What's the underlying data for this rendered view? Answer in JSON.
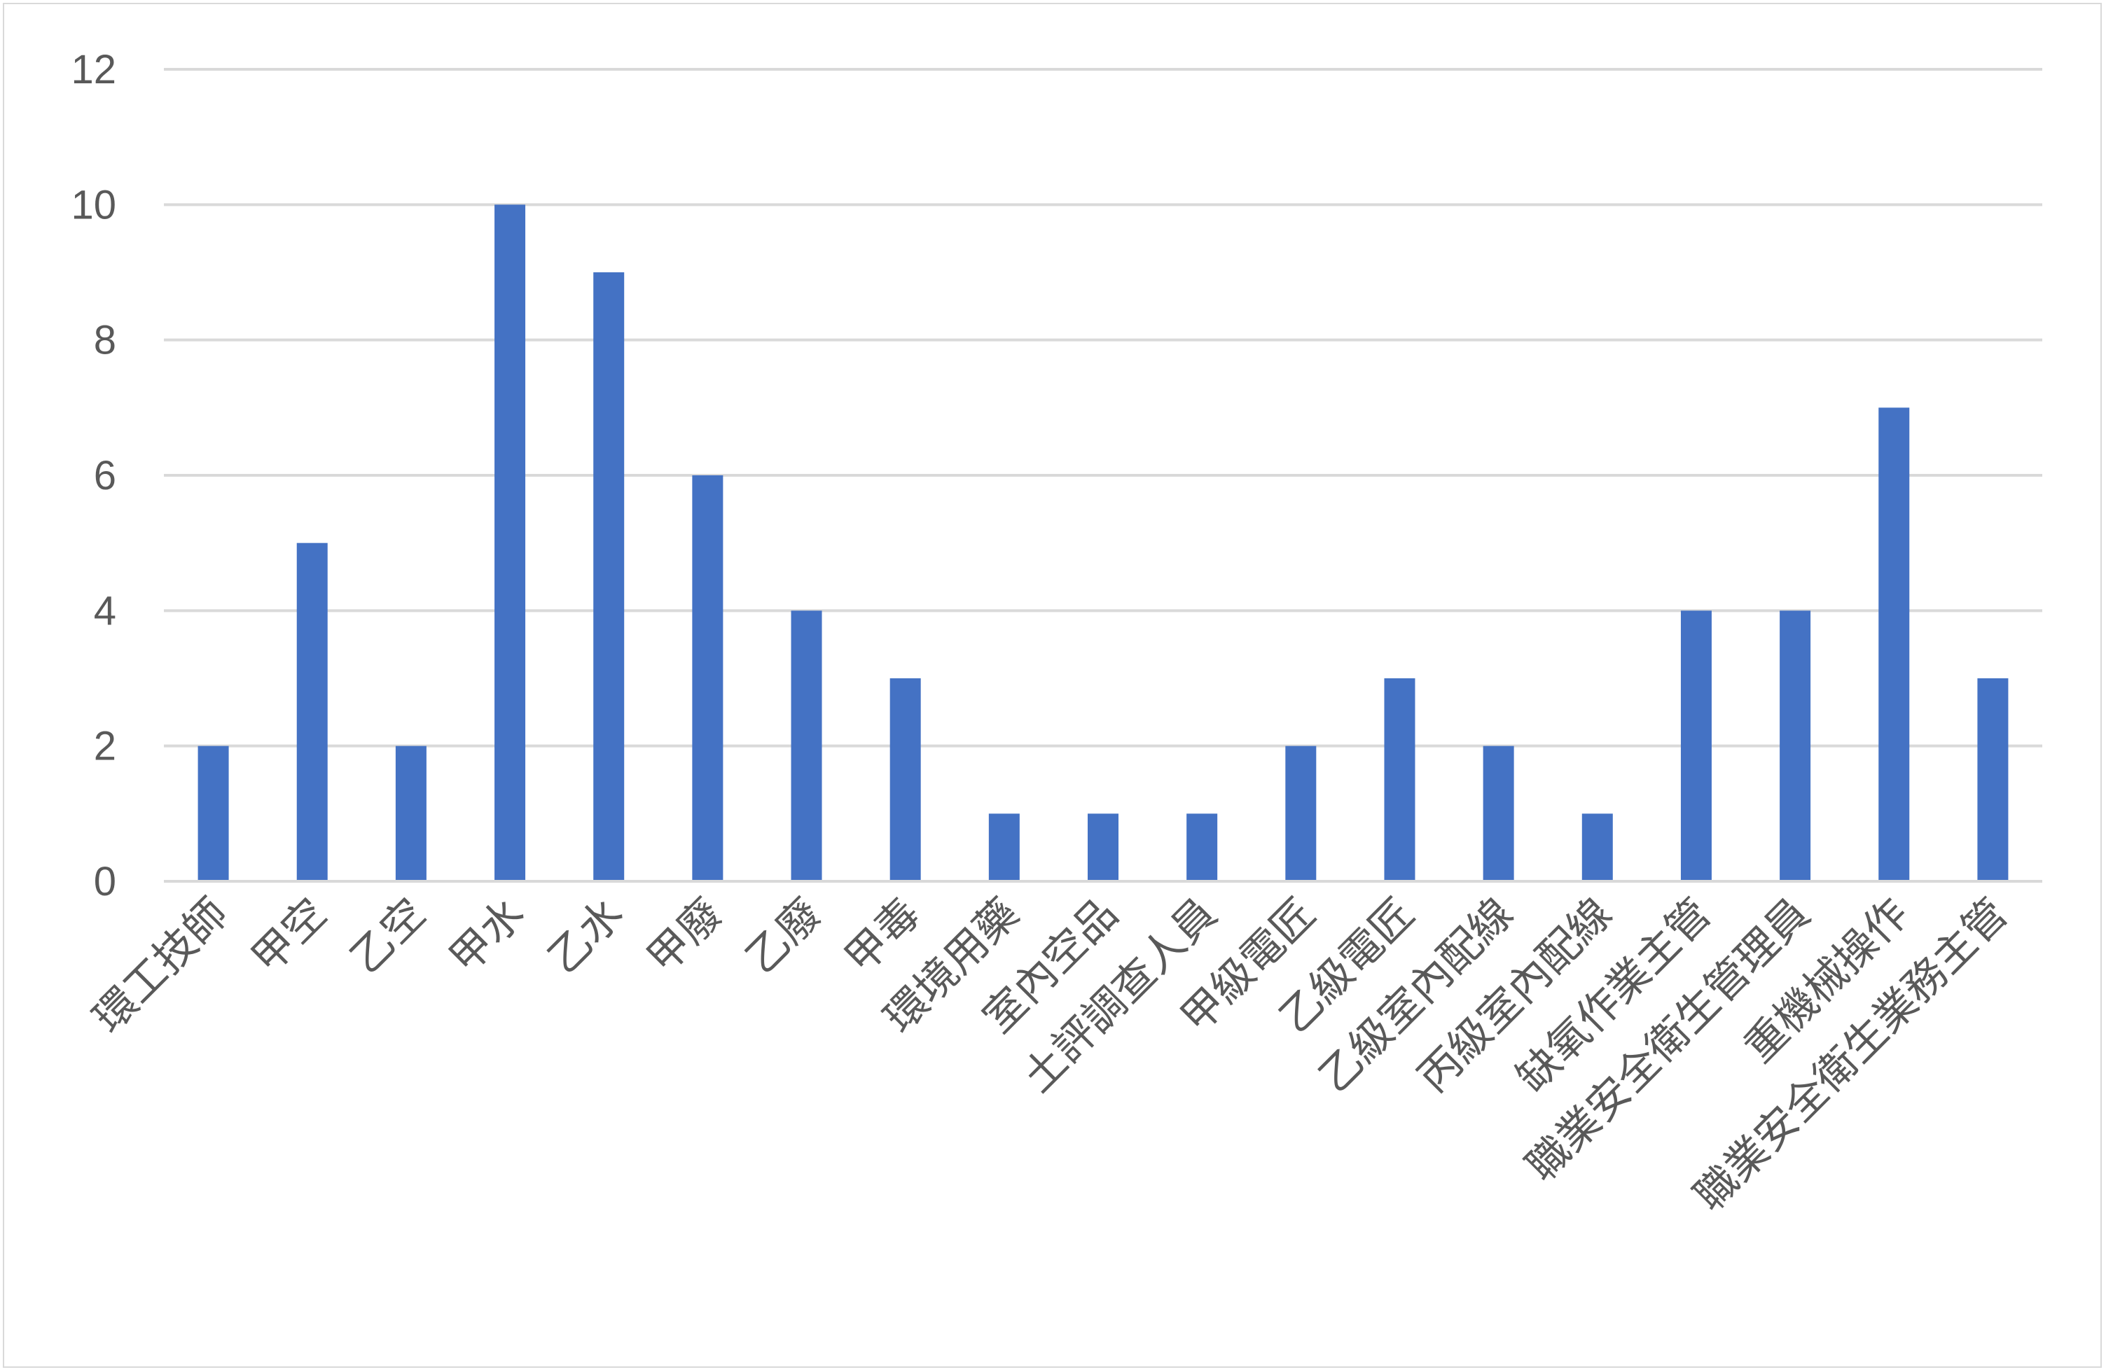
{
  "chart_data": {
    "type": "bar",
    "categories": [
      "環工技師",
      "甲空",
      "乙空",
      "甲水",
      "乙水",
      "甲廢",
      "乙廢",
      "甲毒",
      "環境用藥",
      "室內空品",
      "土評調查人員",
      "甲級電匠",
      "乙級電匠",
      "乙級室內配線",
      "丙級室內配線",
      "缺氧作業主管",
      "職業安全衛生管理員",
      "重機械操作",
      "職業安全衛生業務主管"
    ],
    "values": [
      2,
      5,
      2,
      10,
      9,
      6,
      4,
      3,
      1,
      1,
      1,
      2,
      3,
      2,
      1,
      4,
      4,
      7,
      3
    ],
    "ylim": [
      0,
      12
    ],
    "yticks": [
      0,
      2,
      4,
      6,
      8,
      10,
      12
    ],
    "grid": true,
    "legend": "none",
    "colors": {
      "bar": "#4472C4",
      "grid": "#d9d9d9",
      "axis": "#d9d9d9",
      "text": "#595959"
    }
  }
}
